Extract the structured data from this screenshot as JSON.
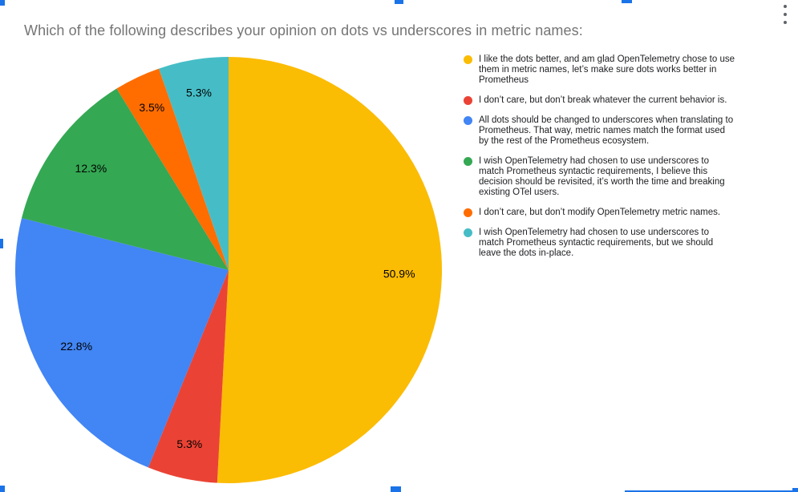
{
  "chart_data": {
    "type": "pie",
    "title": "Which of the following describes your opinion on dots vs underscores in metric names:",
    "direction": "clockwise",
    "start_angle_deg": 0,
    "legend_position": "right",
    "slice_label_color": "#000000",
    "series": [
      {
        "value": 50.9,
        "percent_label": "50.9%",
        "color": "#FBBC04",
        "label_lines": [
          "I like the dots better, and am glad OpenTelemetry chose to use",
          "them in metric names, let’s make sure dots works better in",
          "Prometheus"
        ]
      },
      {
        "value": 5.3,
        "percent_label": "5.3%",
        "color": "#EA4335",
        "label_lines": [
          "I don’t care, but don’t break whatever the current behavior is."
        ]
      },
      {
        "value": 22.8,
        "percent_label": "22.8%",
        "color": "#4285F4",
        "label_lines": [
          "All dots should be changed to underscores when translating to",
          "Prometheus. That way, metric names match the format used",
          "by the rest of the Prometheus ecosystem."
        ]
      },
      {
        "value": 12.3,
        "percent_label": "12.3%",
        "color": "#34A853",
        "label_lines": [
          "I wish OpenTelemetry had chosen to use underscores to",
          "match Prometheus syntactic requirements, I believe this",
          "decision should be revisited, it’s worth the time and breaking",
          "existing OTel users."
        ]
      },
      {
        "value": 3.5,
        "percent_label": "3.5%",
        "color": "#FF6D01",
        "label_lines": [
          "I don’t care, but don’t modify OpenTelemetry metric names."
        ]
      },
      {
        "value": 5.3,
        "percent_label": "5.3%",
        "color": "#46BDC6",
        "label_lines": [
          "I wish OpenTelemetry had chosen to use underscores to",
          "match Prometheus syntactic requirements, but we should",
          "leave the dots in-place."
        ]
      }
    ]
  },
  "ui": {
    "selection_handle_color": "#1a73e8",
    "menu_dot_color": "#5f6368"
  }
}
